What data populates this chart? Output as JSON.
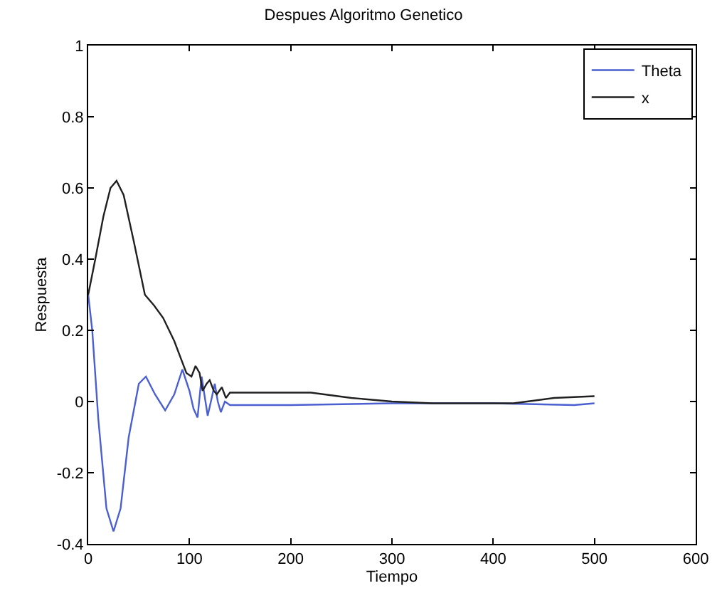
{
  "chart_data": {
    "type": "line",
    "title": "Despues Algoritmo Genetico",
    "xlabel": "Tiempo",
    "ylabel": "Respuesta",
    "xlim": [
      0,
      600
    ],
    "ylim": [
      -0.4,
      1
    ],
    "xticks": [
      0,
      100,
      200,
      300,
      400,
      500,
      600
    ],
    "yticks": [
      -0.4,
      -0.2,
      0,
      0.2,
      0.4,
      0.6,
      0.8,
      1
    ],
    "legend": "top right",
    "marker": "none",
    "line_style": "solid",
    "series": [
      {
        "name": "Theta",
        "color": "#4a5fd0",
        "x": [
          0,
          4,
          10,
          18,
          25,
          32,
          40,
          50,
          57,
          66,
          76,
          85,
          93,
          100,
          104,
          108,
          112,
          118,
          122,
          125,
          128,
          131,
          135,
          140,
          200,
          300,
          400,
          480,
          500
        ],
        "values": [
          0.3,
          0.2,
          -0.05,
          -0.3,
          -0.365,
          -0.3,
          -0.1,
          0.05,
          0.07,
          0.02,
          -0.025,
          0.02,
          0.09,
          0.03,
          -0.02,
          -0.045,
          0.07,
          -0.04,
          0.01,
          0.05,
          0.0,
          -0.03,
          0.0,
          -0.01,
          -0.01,
          -0.005,
          -0.005,
          -0.01,
          -0.005
        ]
      },
      {
        "name": "x",
        "color": "#202020",
        "x": [
          0,
          7,
          15,
          22,
          28,
          35,
          45,
          56,
          65,
          74,
          85,
          97,
          102,
          106,
          110,
          113,
          117,
          120,
          124,
          127,
          132,
          136,
          140,
          220,
          260,
          300,
          340,
          420,
          460,
          500
        ],
        "values": [
          0.3,
          0.4,
          0.52,
          0.6,
          0.62,
          0.58,
          0.45,
          0.3,
          0.27,
          0.235,
          0.17,
          0.08,
          0.07,
          0.1,
          0.08,
          0.03,
          0.05,
          0.06,
          0.03,
          0.02,
          0.04,
          0.01,
          0.025,
          0.025,
          0.01,
          0.0,
          -0.005,
          -0.005,
          0.01,
          0.015
        ]
      }
    ]
  }
}
